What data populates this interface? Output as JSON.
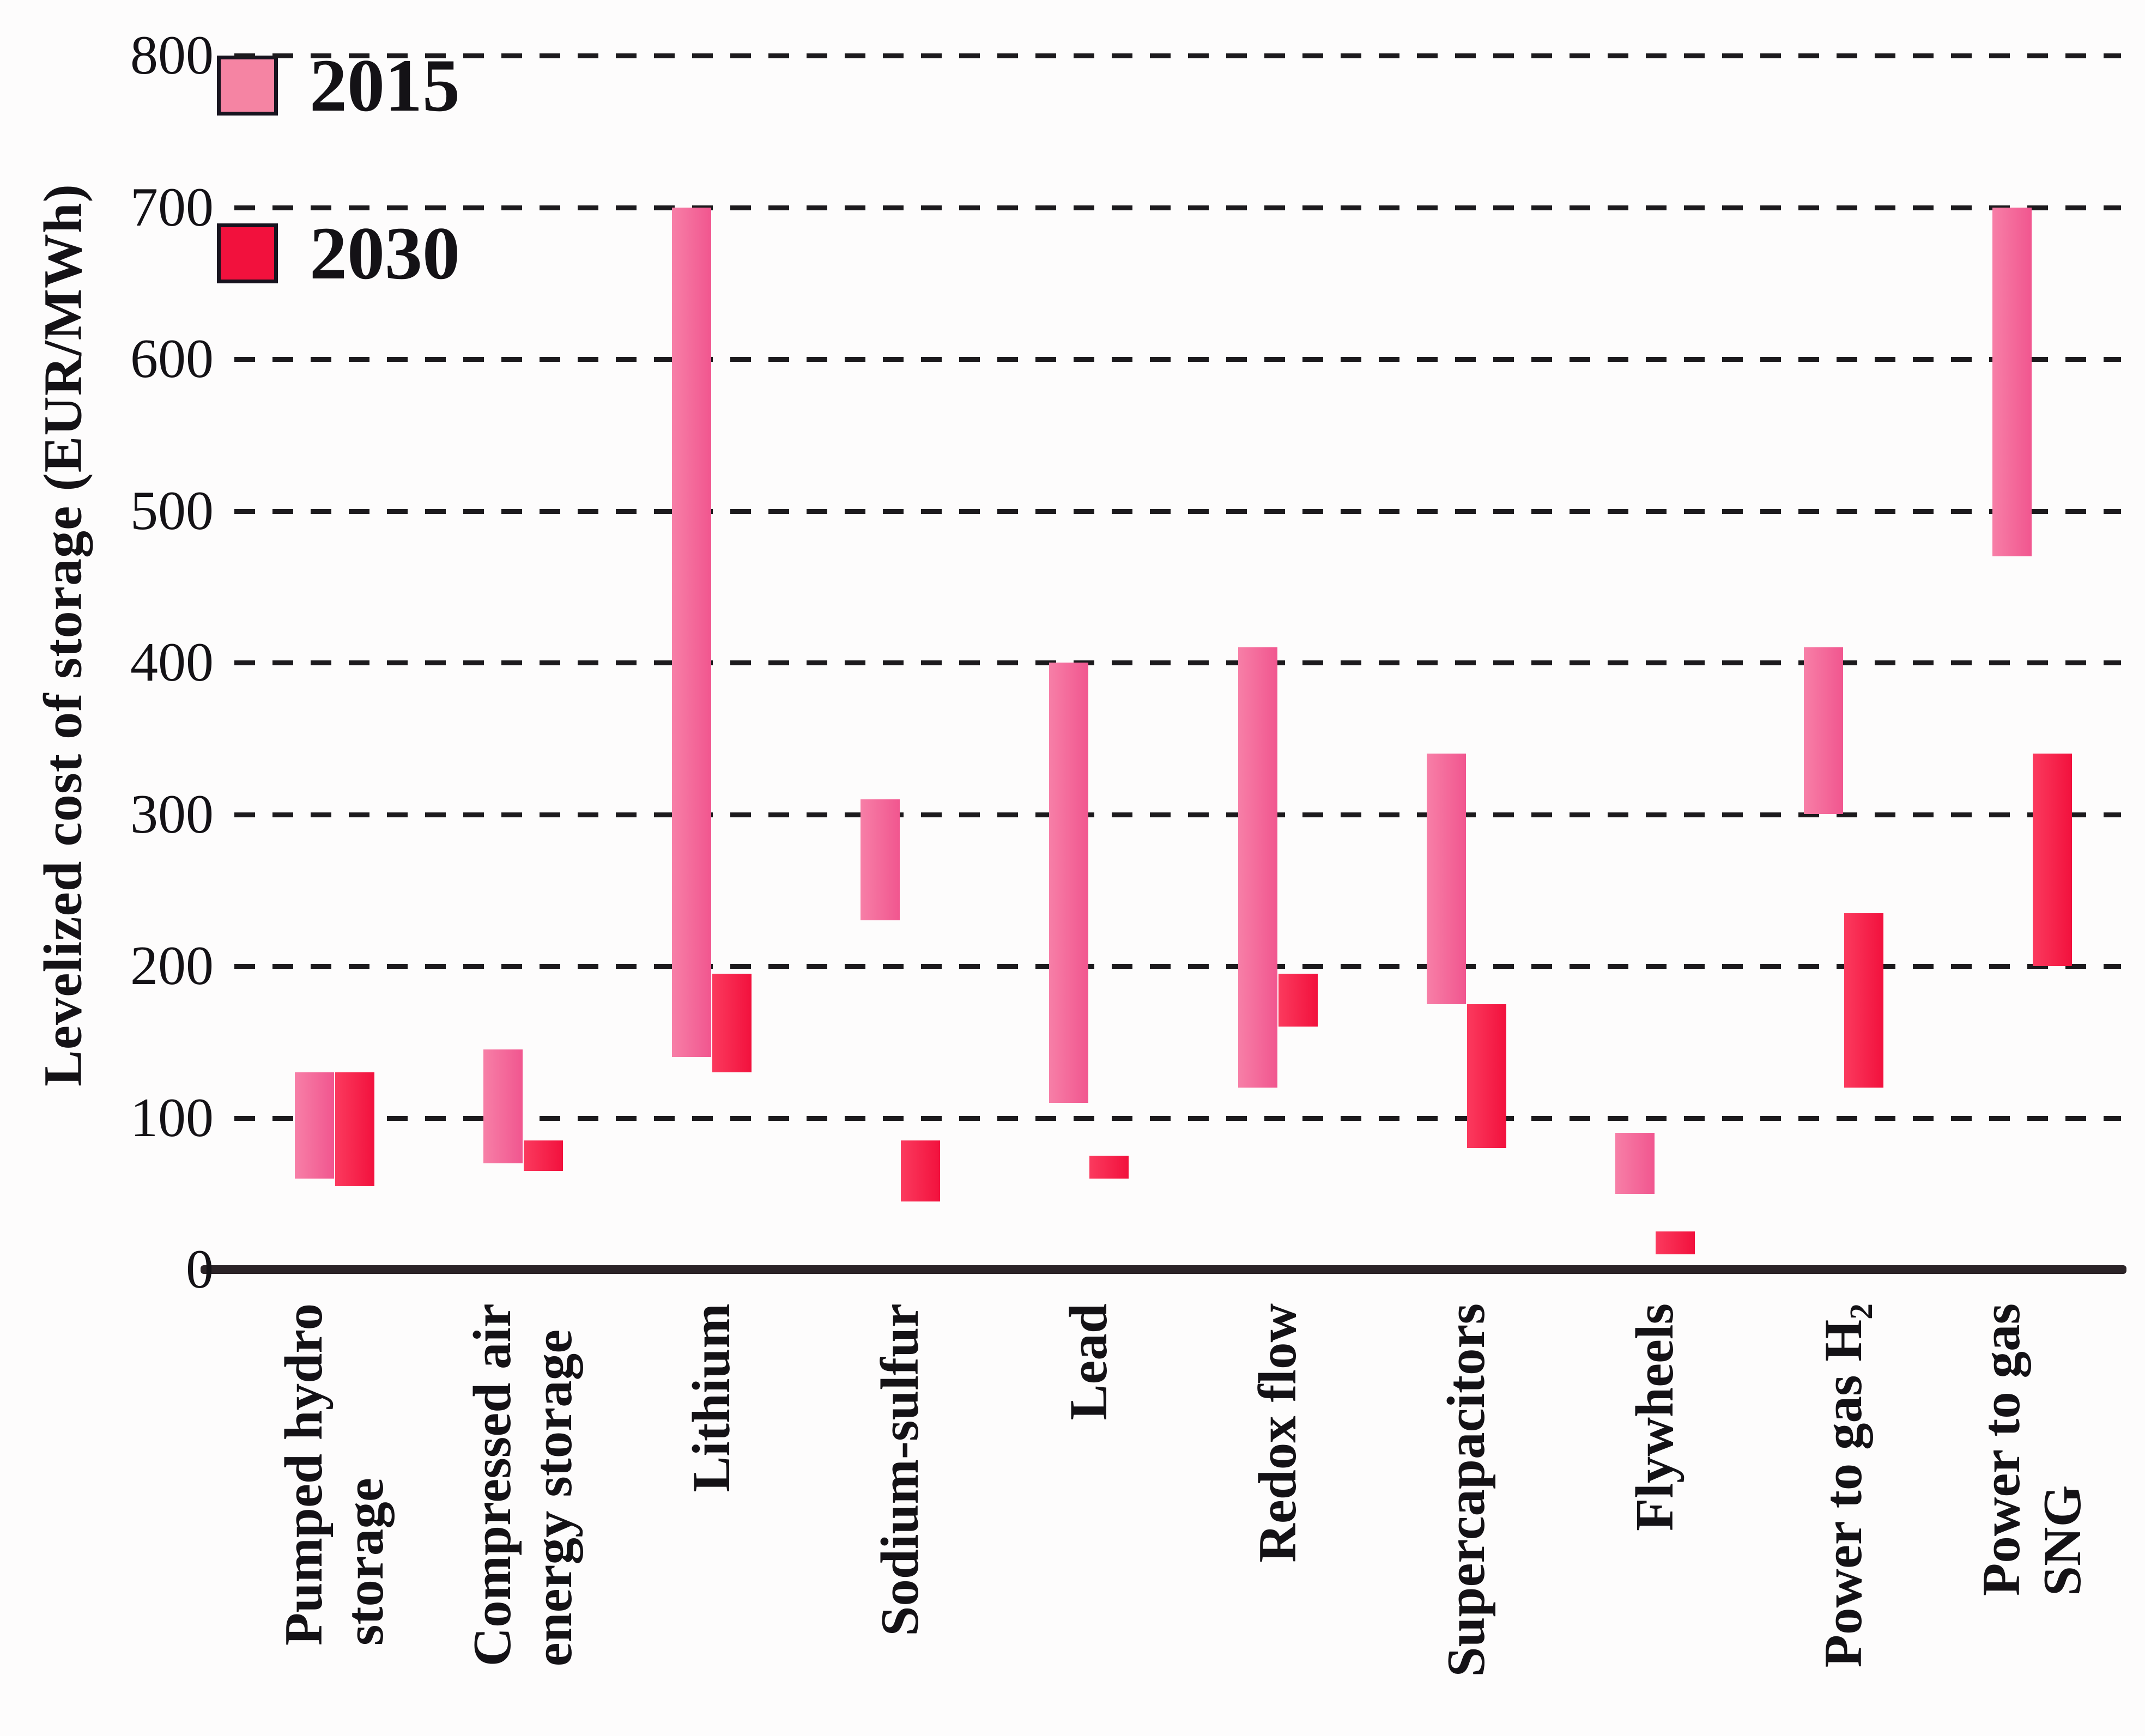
{
  "axes": {
    "y_title": "Levelized cost of storage (EUR/MWh)",
    "y_ticks": [
      "800",
      "700",
      "600",
      "500",
      "400",
      "300",
      "200",
      "100",
      "0"
    ]
  },
  "legend": {
    "position": "top-left",
    "items": [
      {
        "label": "2015",
        "color": "#F584A3"
      },
      {
        "label": "2030",
        "color": "#F2113D"
      }
    ]
  },
  "chart_data": {
    "type": "bar",
    "subtype": "floating-range-columns",
    "title": "",
    "xlabel": "",
    "ylabel": "Levelized cost of storage (EUR/MWh)",
    "unit": "EUR/MWh",
    "ylim": [
      0,
      800
    ],
    "ytick_interval": 100,
    "grid": "horizontal dashed gridlines every 100; solid axis baseline at 0",
    "legend_position": "top-left",
    "categories": [
      "Pumped hydro storage",
      "Compressed air energy storage",
      "Lithium",
      "Sodium-sulfur",
      "Lead",
      "Redox flow",
      "Supercapacitors",
      "Flywheels",
      "Power to gas H₂",
      "Power to gas SNG"
    ],
    "category_label_lines": [
      [
        "Pumped hydro",
        "storage"
      ],
      [
        "Compressed air",
        "energy storage"
      ],
      [
        "Lithium"
      ],
      [
        "Sodium-sulfur"
      ],
      [
        "Lead"
      ],
      [
        "Redox flow"
      ],
      [
        "Supercapacitors"
      ],
      [
        "Flywheels"
      ],
      [
        "Power to gas H₂"
      ],
      [
        "Power to gas",
        "SNG"
      ]
    ],
    "series": [
      {
        "name": "2015",
        "color": "#F1568F",
        "gradient_light": "#F77FA7",
        "ranges_eur_mwh": [
          [
            60,
            130
          ],
          [
            70,
            145
          ],
          [
            140,
            700
          ],
          [
            230,
            310
          ],
          [
            110,
            400
          ],
          [
            120,
            410
          ],
          [
            175,
            340
          ],
          [
            50,
            90
          ],
          [
            300,
            410
          ],
          [
            470,
            700
          ]
        ]
      },
      {
        "name": "2030",
        "color": "#F2113D",
        "gradient_light": "#FB3A5E",
        "ranges_eur_mwh": [
          [
            55,
            130
          ],
          [
            65,
            85
          ],
          [
            130,
            195
          ],
          [
            45,
            85
          ],
          [
            60,
            75
          ],
          [
            160,
            195
          ],
          [
            80,
            175
          ],
          [
            10,
            25
          ],
          [
            120,
            235
          ],
          [
            200,
            340
          ]
        ]
      }
    ]
  }
}
